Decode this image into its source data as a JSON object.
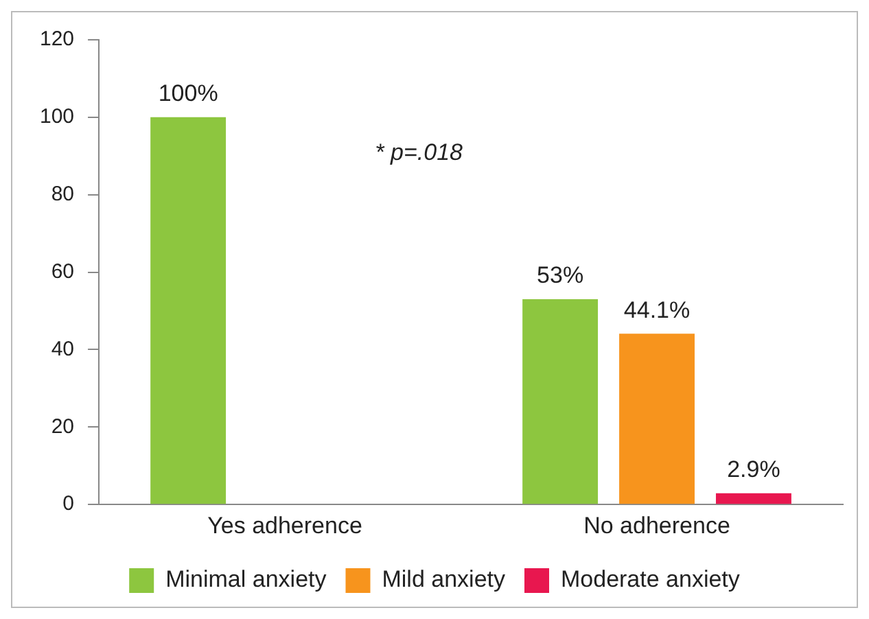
{
  "chart_data": {
    "type": "bar",
    "categories": [
      "Yes adherence",
      "No adherence"
    ],
    "series": [
      {
        "name": "Minimal anxiety",
        "color": "#8dc63f",
        "values": [
          100,
          53
        ],
        "value_labels": [
          "100%",
          "53%"
        ]
      },
      {
        "name": "Mild anxiety",
        "color": "#f7941d",
        "values": [
          null,
          44.1
        ],
        "value_labels": [
          null,
          "44.1%"
        ]
      },
      {
        "name": "Moderate anxiety",
        "color": "#e8174f",
        "values": [
          null,
          2.9
        ],
        "value_labels": [
          null,
          "2.9%"
        ]
      }
    ],
    "ylim": [
      0,
      120
    ],
    "yticks": [
      0,
      20,
      40,
      60,
      80,
      100,
      120
    ],
    "grid": false,
    "legend": "bottom",
    "annotations": [
      "* p=.018"
    ]
  }
}
